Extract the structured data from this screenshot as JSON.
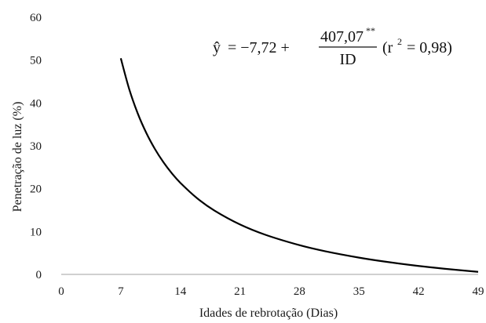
{
  "chart_data": {
    "type": "line",
    "title": "",
    "xlabel": "Idades de rebrotação (Dias)",
    "ylabel": "Penetração de luz  (%)",
    "xlim": [
      0,
      49
    ],
    "ylim": [
      0,
      60
    ],
    "x_ticks": [
      "0",
      "7",
      "14",
      "21",
      "28",
      "35",
      "42",
      "49"
    ],
    "y_ticks": [
      "0",
      "10",
      "20",
      "30",
      "40",
      "50",
      "60"
    ],
    "grid": false,
    "legend": "none",
    "series": [
      {
        "model": "y = -7.72 + 407.07/x",
        "x": [
          7,
          8,
          9,
          10,
          11,
          12,
          13,
          14,
          16,
          18,
          21,
          24,
          28,
          31,
          35,
          38,
          42,
          45,
          49
        ],
        "y": [
          50.43,
          43.16,
          37.51,
          32.99,
          29.29,
          26.2,
          23.59,
          21.36,
          17.72,
          14.9,
          11.66,
          9.24,
          6.82,
          5.41,
          3.91,
          2.99,
          1.97,
          1.33,
          0.59
        ],
        "color": "#000000"
      }
    ],
    "annotation": {
      "yhat": "ŷ",
      "eq_mid": " = −7,72 + ",
      "numerator": "407,07",
      "stars": "**",
      "denominator": "ID",
      "r_open": "(r",
      "r_sup": "2",
      "r_close": " = 0,98)"
    }
  }
}
